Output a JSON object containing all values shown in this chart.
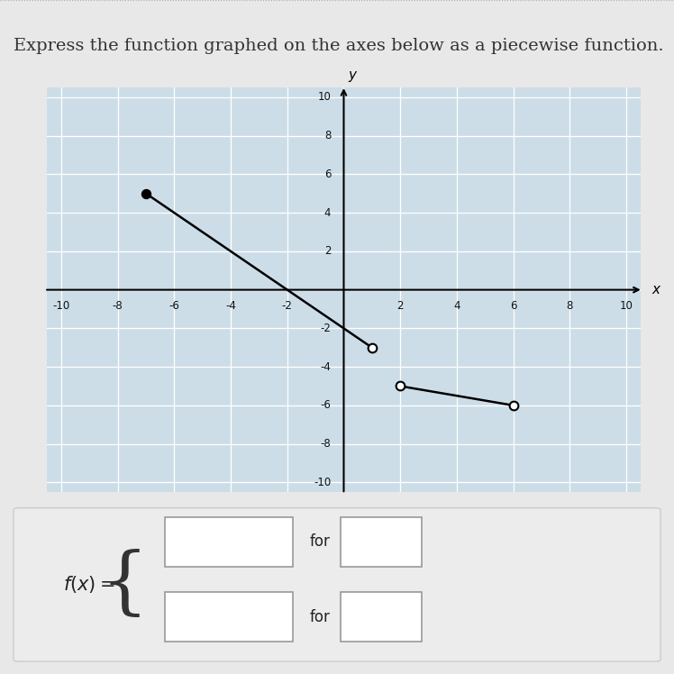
{
  "title": "Express the function graphed on the axes below as a piecewise function.",
  "title_fontsize": 14,
  "bg_color": "#e8e8e8",
  "plot_bg_color": "#ccdde8",
  "grid_color": "#ffffff",
  "xlim": [
    -10.5,
    10.5
  ],
  "ylim": [
    -10.5,
    10.5
  ],
  "xticks": [
    -10,
    -8,
    -6,
    -4,
    -2,
    2,
    4,
    6,
    8,
    10
  ],
  "yticks": [
    -10,
    -8,
    -6,
    -4,
    -2,
    2,
    4,
    6,
    8,
    10
  ],
  "piece1": {
    "x_start": -7,
    "y_start": 5,
    "x_end": 1,
    "y_end": -3,
    "start_open": false,
    "end_open": true
  },
  "piece2": {
    "x_start": 2,
    "y_start": -5,
    "x_end": 6,
    "y_end": -6,
    "start_open": true,
    "end_open": true
  },
  "line_color": "#000000",
  "dot_fill_closed": "#000000",
  "dot_fill_open": "#ffffff",
  "dot_edge_color": "#000000",
  "dot_size": 7,
  "bottom_bg": "#e0e0e0",
  "bottom_inner_bg": "#ebebeb"
}
